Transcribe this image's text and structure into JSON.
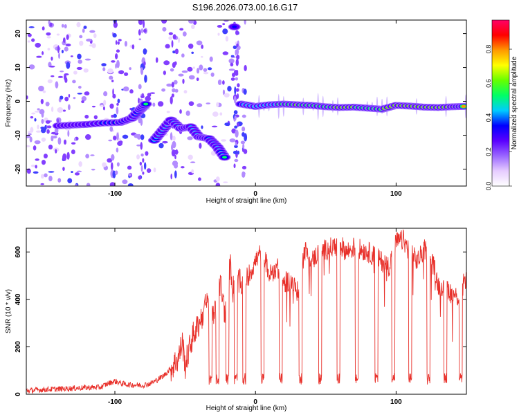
{
  "title": "S196.2026.073.00.16.G17",
  "colors": {
    "snr_line": "#e8302a",
    "axis": "#000000",
    "background": "#ffffff"
  },
  "chart_data": [
    {
      "type": "heatmap",
      "name": "spectrogram",
      "xlabel": "Height of straight line (km)",
      "ylabel": "Frequency (Hz)",
      "xlim": [
        -163,
        150
      ],
      "ylim": [
        -25,
        24
      ],
      "xticks": [
        -100,
        0,
        100
      ],
      "yticks": [
        -20,
        -10,
        0,
        10,
        20
      ],
      "colorbar": {
        "label": "Normalized spectral amplitude",
        "range": [
          0,
          0.97
        ],
        "ticks": [
          0.0,
          0.2,
          0.4,
          0.6,
          0.8
        ],
        "tick_labels": [
          "0.0",
          "0.2",
          "0.4",
          "0.6",
          "0.8"
        ],
        "colormap": [
          "#ffffff",
          "#e6ccff",
          "#9a66ff",
          "#5a00ff",
          "#0000ff",
          "#00ccff",
          "#00ff66",
          "#66ff00",
          "#ffff00",
          "#ff9900",
          "#ff0000",
          "#ff0066"
        ]
      },
      "ridge": [
        {
          "x": -140,
          "y": -7.2,
          "amp": 0.35
        },
        {
          "x": -130,
          "y": -7.0,
          "amp": 0.32
        },
        {
          "x": -120,
          "y": -6.8,
          "amp": 0.38
        },
        {
          "x": -108,
          "y": -6.4,
          "amp": 0.45
        },
        {
          "x": -96,
          "y": -6.2,
          "amp": 0.5
        },
        {
          "x": -88,
          "y": -5.0,
          "amp": 0.42
        },
        {
          "x": -82,
          "y": -2.5,
          "amp": 0.48
        },
        {
          "x": -78,
          "y": -0.8,
          "amp": 0.5
        },
        {
          "x": -72,
          "y": -11.5,
          "amp": 0.45
        },
        {
          "x": -66,
          "y": -8.5,
          "amp": 0.42
        },
        {
          "x": -60,
          "y": -5.5,
          "amp": 0.38
        },
        {
          "x": -53,
          "y": -8.0,
          "amp": 0.45
        },
        {
          "x": -46,
          "y": -7.5,
          "amp": 0.42
        },
        {
          "x": -40,
          "y": -10.5,
          "amp": 0.4
        },
        {
          "x": -33,
          "y": -11.0,
          "amp": 0.45
        },
        {
          "x": -27,
          "y": -13.5,
          "amp": 0.4
        },
        {
          "x": -22,
          "y": -16.5,
          "amp": 0.5
        },
        {
          "x": -15,
          "y": 22.0,
          "amp": 0.35
        },
        {
          "x": -10,
          "y": -0.8,
          "amp": 0.55
        },
        {
          "x": 0,
          "y": -1.5,
          "amp": 0.62
        },
        {
          "x": 10,
          "y": -1.0,
          "amp": 0.66
        },
        {
          "x": 20,
          "y": -0.8,
          "amp": 0.72
        },
        {
          "x": 30,
          "y": -1.0,
          "amp": 0.82
        },
        {
          "x": 40,
          "y": -1.2,
          "amp": 0.75
        },
        {
          "x": 50,
          "y": -1.6,
          "amp": 0.7
        },
        {
          "x": 60,
          "y": -1.8,
          "amp": 0.9
        },
        {
          "x": 70,
          "y": -1.7,
          "amp": 0.85
        },
        {
          "x": 80,
          "y": -2.0,
          "amp": 0.72
        },
        {
          "x": 90,
          "y": -2.3,
          "amp": 0.8
        },
        {
          "x": 100,
          "y": -1.2,
          "amp": 0.88
        },
        {
          "x": 110,
          "y": -1.4,
          "amp": 0.85
        },
        {
          "x": 120,
          "y": -1.7,
          "amp": 0.9
        },
        {
          "x": 130,
          "y": -1.8,
          "amp": 0.82
        },
        {
          "x": 140,
          "y": -1.6,
          "amp": 0.88
        },
        {
          "x": 148,
          "y": -1.5,
          "amp": 0.75
        }
      ]
    },
    {
      "type": "line",
      "name": "snr",
      "xlabel": "Height of straight line (km)",
      "ylabel": "SNR (10 * v/v)",
      "xlim": [
        -163,
        150
      ],
      "ylim": [
        0,
        700
      ],
      "xticks": [
        -100,
        0,
        100
      ],
      "yticks": [
        0,
        200,
        400,
        600
      ],
      "series": [
        {
          "name": "SNR",
          "x": [
            -163,
            -150,
            -140,
            -130,
            -120,
            -110,
            -105,
            -100,
            -95,
            -90,
            -80,
            -75,
            -70,
            -65,
            -60,
            -55,
            -52,
            -50,
            -45,
            -40,
            -35,
            -30,
            -28,
            -25,
            -22,
            -20,
            -18,
            -16,
            -15,
            -13,
            -10,
            -5,
            0,
            5,
            10,
            15,
            20,
            25,
            30,
            35,
            40,
            45,
            50,
            55,
            60,
            65,
            70,
            75,
            80,
            85,
            90,
            95,
            100,
            105,
            110,
            115,
            120,
            125,
            130,
            135,
            140,
            145,
            150
          ],
          "values": [
            15,
            20,
            22,
            25,
            28,
            30,
            45,
            55,
            45,
            40,
            38,
            45,
            60,
            80,
            110,
            150,
            220,
            120,
            240,
            300,
            380,
            360,
            330,
            470,
            350,
            380,
            560,
            440,
            470,
            480,
            460,
            500,
            560,
            610,
            500,
            540,
            470,
            480,
            430,
            610,
            560,
            600,
            610,
            620,
            630,
            600,
            620,
            610,
            600,
            580,
            560,
            540,
            640,
            650,
            600,
            560,
            610,
            580,
            460,
            460,
            420,
            410,
            500
          ]
        }
      ]
    }
  ]
}
